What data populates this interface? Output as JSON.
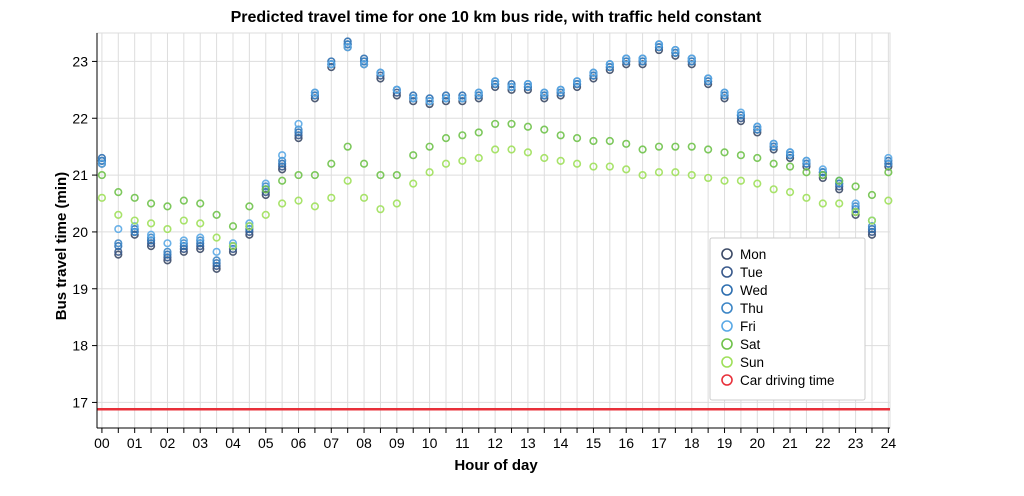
{
  "chart_data": {
    "type": "scatter",
    "title": "Predicted travel time for one 10 km bus ride, with traffic held constant",
    "xlabel": "Hour of day",
    "ylabel": "Bus travel time (min)",
    "xlim": [
      -0.15,
      24.05
    ],
    "ylim": [
      16.55,
      23.5
    ],
    "x_ticks": [
      {
        "value": 0,
        "label": "00"
      },
      {
        "value": 1,
        "label": "01"
      },
      {
        "value": 2,
        "label": "02"
      },
      {
        "value": 3,
        "label": "03"
      },
      {
        "value": 4,
        "label": "04"
      },
      {
        "value": 5,
        "label": "05"
      },
      {
        "value": 6,
        "label": "06"
      },
      {
        "value": 7,
        "label": "07"
      },
      {
        "value": 8,
        "label": "08"
      },
      {
        "value": 9,
        "label": "09"
      },
      {
        "value": 10,
        "label": "10"
      },
      {
        "value": 11,
        "label": "11"
      },
      {
        "value": 12,
        "label": "12"
      },
      {
        "value": 13,
        "label": "13"
      },
      {
        "value": 14,
        "label": "14"
      },
      {
        "value": 15,
        "label": "15"
      },
      {
        "value": 16,
        "label": "16"
      },
      {
        "value": 17,
        "label": "17"
      },
      {
        "value": 18,
        "label": "18"
      },
      {
        "value": 19,
        "label": "19"
      },
      {
        "value": 20,
        "label": "20"
      },
      {
        "value": 21,
        "label": "21"
      },
      {
        "value": 22,
        "label": "22"
      },
      {
        "value": 23,
        "label": "23"
      },
      {
        "value": 24,
        "label": "24"
      }
    ],
    "y_ticks": [
      {
        "value": 17,
        "label": "17"
      },
      {
        "value": 18,
        "label": "18"
      },
      {
        "value": 19,
        "label": "19"
      },
      {
        "value": 20,
        "label": "20"
      },
      {
        "value": 21,
        "label": "21"
      },
      {
        "value": 22,
        "label": "22"
      },
      {
        "value": 23,
        "label": "23"
      }
    ],
    "grid": true,
    "legend_position": "bottom-right",
    "x": [
      0,
      0.5,
      1,
      1.5,
      2,
      2.5,
      3,
      3.5,
      4,
      4.5,
      5,
      5.5,
      6,
      6.5,
      7,
      7.5,
      8,
      8.5,
      9,
      9.5,
      10,
      10.5,
      11,
      11.5,
      12,
      12.5,
      13,
      13.5,
      14,
      14.5,
      15,
      15.5,
      16,
      16.5,
      17,
      17.5,
      18,
      18.5,
      19,
      19.5,
      20,
      20.5,
      21,
      21.5,
      22,
      22.5,
      23,
      23.5,
      24
    ],
    "series": [
      {
        "name": "Mon",
        "color": "#3c4a66",
        "marker": "circle-open",
        "values": [
          21.2,
          19.6,
          19.95,
          19.75,
          19.5,
          19.65,
          19.7,
          19.35,
          19.65,
          19.95,
          20.65,
          21.1,
          21.65,
          22.35,
          22.9,
          23.25,
          22.95,
          22.7,
          22.4,
          22.3,
          22.25,
          22.3,
          22.3,
          22.35,
          22.55,
          22.5,
          22.5,
          22.35,
          22.4,
          22.55,
          22.7,
          22.85,
          22.95,
          22.95,
          23.2,
          23.1,
          22.95,
          22.6,
          22.35,
          21.95,
          21.75,
          21.45,
          21.3,
          21.15,
          20.95,
          20.75,
          20.3,
          19.95,
          21.15
        ]
      },
      {
        "name": "Tue",
        "color": "#3a5a8c",
        "marker": "circle-open",
        "values": [
          21.25,
          19.65,
          20.0,
          19.8,
          19.55,
          19.7,
          19.75,
          19.4,
          19.7,
          20.0,
          20.7,
          21.15,
          21.7,
          22.4,
          22.95,
          23.3,
          23.0,
          22.75,
          22.45,
          22.35,
          22.3,
          22.35,
          22.35,
          22.4,
          22.6,
          22.55,
          22.55,
          22.4,
          22.45,
          22.6,
          22.75,
          22.9,
          23.0,
          23.0,
          23.25,
          23.15,
          23.0,
          22.65,
          22.4,
          22.0,
          21.8,
          21.5,
          21.35,
          21.2,
          21.0,
          20.8,
          20.35,
          20.0,
          21.2
        ]
      },
      {
        "name": "Wed",
        "color": "#2e6fb0",
        "marker": "circle-open",
        "values": [
          21.3,
          19.75,
          20.05,
          19.85,
          19.6,
          19.75,
          19.8,
          19.45,
          19.75,
          20.05,
          20.75,
          21.2,
          21.75,
          22.45,
          23.0,
          23.35,
          23.05,
          22.8,
          22.5,
          22.4,
          22.35,
          22.4,
          22.4,
          22.45,
          22.65,
          22.6,
          22.6,
          22.45,
          22.5,
          22.65,
          22.8,
          22.95,
          23.05,
          23.05,
          23.3,
          23.2,
          23.05,
          22.7,
          22.45,
          22.05,
          21.85,
          21.55,
          21.4,
          21.25,
          21.05,
          20.85,
          20.4,
          20.05,
          21.25
        ]
      },
      {
        "name": "Thu",
        "color": "#3d86c6",
        "marker": "circle-open",
        "values": [
          21.25,
          19.8,
          20.0,
          19.9,
          19.65,
          19.8,
          19.85,
          19.5,
          19.75,
          20.1,
          20.8,
          21.25,
          21.8,
          22.4,
          22.95,
          23.3,
          23.0,
          22.8,
          22.5,
          22.35,
          22.3,
          22.35,
          22.35,
          22.4,
          22.6,
          22.55,
          22.55,
          22.4,
          22.45,
          22.6,
          22.75,
          22.9,
          23.0,
          23.0,
          23.25,
          23.15,
          23.0,
          22.65,
          22.4,
          22.05,
          21.8,
          21.5,
          21.35,
          21.2,
          21.05,
          20.85,
          20.45,
          20.1,
          21.2
        ]
      },
      {
        "name": "Fri",
        "color": "#5aa9e6",
        "marker": "circle-open",
        "values": [
          21.2,
          20.05,
          20.1,
          19.95,
          19.8,
          19.85,
          19.9,
          19.65,
          19.8,
          20.15,
          20.85,
          21.35,
          21.9,
          22.45,
          22.95,
          23.25,
          22.95,
          22.8,
          22.5,
          22.35,
          22.3,
          22.35,
          22.35,
          22.45,
          22.65,
          22.55,
          22.6,
          22.45,
          22.5,
          22.65,
          22.8,
          22.95,
          23.05,
          23.05,
          23.3,
          23.2,
          23.05,
          22.7,
          22.45,
          22.1,
          21.85,
          21.55,
          21.4,
          21.25,
          21.1,
          20.9,
          20.5,
          20.2,
          21.3
        ]
      },
      {
        "name": "Sat",
        "color": "#6fc24a",
        "marker": "circle-open",
        "values": [
          21.0,
          20.7,
          20.6,
          20.5,
          20.45,
          20.55,
          20.5,
          20.3,
          20.1,
          20.45,
          20.75,
          20.9,
          21.0,
          21.0,
          21.2,
          21.5,
          21.2,
          21.0,
          21.0,
          21.35,
          21.5,
          21.65,
          21.7,
          21.75,
          21.9,
          21.9,
          21.85,
          21.8,
          21.7,
          21.65,
          21.6,
          21.6,
          21.55,
          21.45,
          21.5,
          21.5,
          21.5,
          21.45,
          21.4,
          21.35,
          21.3,
          21.2,
          21.15,
          21.05,
          21.0,
          20.9,
          20.8,
          20.65,
          21.05
        ]
      },
      {
        "name": "Sun",
        "color": "#9fe05a",
        "marker": "circle-open",
        "values": [
          20.6,
          20.3,
          20.2,
          20.15,
          20.05,
          20.2,
          20.15,
          19.9,
          19.75,
          20.1,
          20.3,
          20.5,
          20.55,
          20.45,
          20.6,
          20.9,
          20.6,
          20.4,
          20.5,
          20.85,
          21.05,
          21.2,
          21.25,
          21.3,
          21.45,
          21.45,
          21.4,
          21.3,
          21.25,
          21.2,
          21.15,
          21.15,
          21.1,
          21.0,
          21.05,
          21.05,
          21.0,
          20.95,
          20.9,
          20.9,
          20.85,
          20.75,
          20.7,
          20.6,
          20.5,
          20.5,
          20.35,
          20.2,
          20.55
        ]
      },
      {
        "name": "Car driving time",
        "color": "#e8303a",
        "marker": "line",
        "value": 16.88
      }
    ]
  }
}
